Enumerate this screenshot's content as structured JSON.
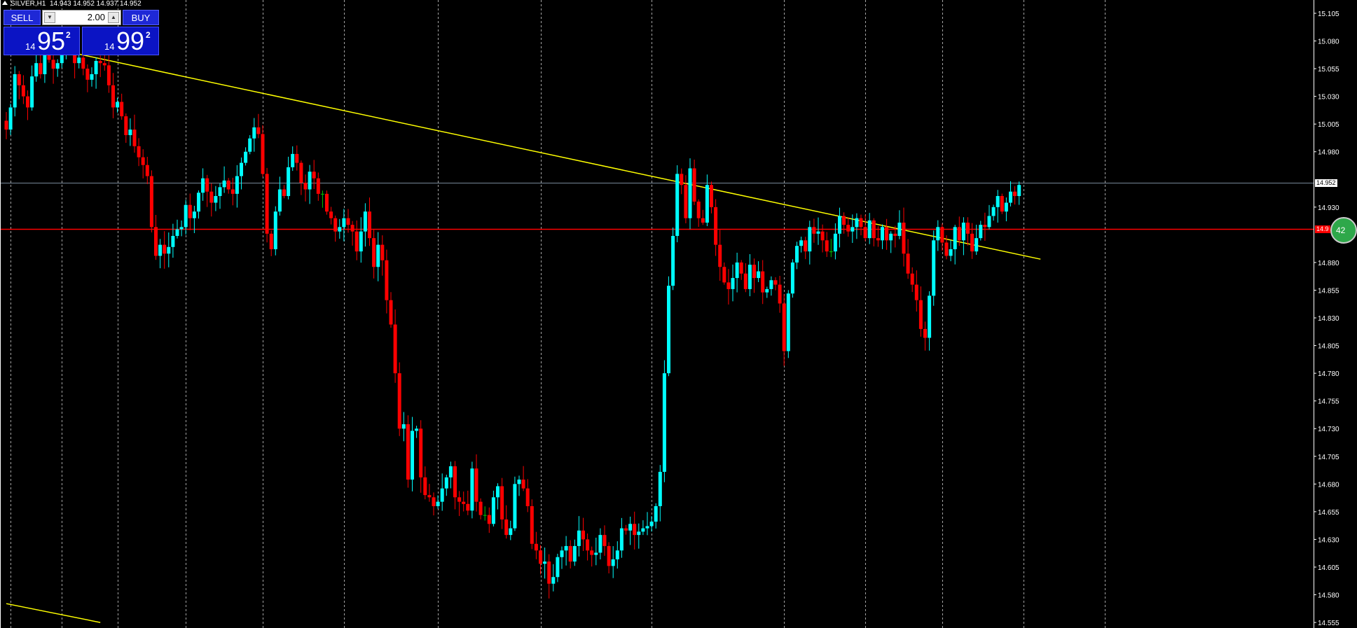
{
  "header": {
    "symbol": "SILVER,H1",
    "ohlc": "14.943 14.952 14.937 14.952"
  },
  "trade_panel": {
    "sell_label": "SELL",
    "buy_label": "BUY",
    "lot": "2.00",
    "sell_price": {
      "small": "14",
      "big": "95",
      "sup": "2"
    },
    "buy_price": {
      "small": "14",
      "big": "99",
      "sup": "2"
    }
  },
  "price_tags": {
    "bid": "14.952",
    "level": "14.9"
  },
  "alert_circle_text": "42",
  "colors": {
    "bull": "#00ffff",
    "bear": "#ff0000",
    "doji": "#00c800",
    "trendline": "#ffff00",
    "horizontal_line": "#ff0000",
    "bid_line": "#778899",
    "grid": "#c0c0c0",
    "axis": "#ffffff"
  },
  "chart_data": {
    "type": "candlestick",
    "symbol": "SILVER",
    "timeframe": "H1",
    "y_ticks": [
      15.105,
      15.08,
      15.055,
      15.03,
      15.005,
      14.98,
      14.93,
      14.88,
      14.855,
      14.83,
      14.805,
      14.78,
      14.755,
      14.73,
      14.705,
      14.68,
      14.655,
      14.63,
      14.605,
      14.58,
      14.555
    ],
    "ylim": [
      14.55,
      15.117
    ],
    "vertical_grid_index": [
      1,
      13,
      26,
      42,
      60,
      79,
      101,
      125,
      151,
      182,
      201,
      219,
      238,
      257
    ],
    "horizontal_line": 14.91,
    "bid": 14.952,
    "trendlines": [
      {
        "start": [
          5,
          15.078
        ],
        "end": [
          242,
          14.883
        ]
      },
      {
        "start": [
          0,
          14.572
        ],
        "end": [
          22,
          14.555
        ]
      }
    ],
    "closes": [
      15.0,
      15.02,
      15.05,
      15.04,
      15.03,
      15.02,
      15.048,
      15.06,
      15.05,
      15.07,
      15.063,
      15.055,
      15.06,
      15.072,
      15.08,
      15.075,
      15.06,
      15.065,
      15.055,
      15.045,
      15.05,
      15.062,
      15.06,
      15.058,
      15.04,
      15.02,
      15.025,
      15.012,
      14.995,
      15.0,
      14.985,
      14.975,
      14.968,
      14.958,
      14.912,
      14.886,
      14.896,
      14.888,
      14.894,
      14.904,
      14.91,
      14.912,
      14.932,
      14.92,
      14.926,
      14.943,
      14.956,
      14.944,
      14.934,
      14.94,
      14.948,
      14.954,
      14.946,
      14.942,
      14.958,
      14.97,
      14.98,
      14.992,
      15.002,
      14.996,
      14.96,
      14.906,
      14.892,
      14.926,
      14.946,
      14.94,
      14.966,
      14.978,
      14.97,
      14.952,
      14.946,
      14.962,
      14.956,
      14.942,
      14.942,
      14.926,
      14.92,
      14.908,
      14.912,
      14.92,
      14.914,
      14.908,
      14.89,
      14.908,
      14.926,
      14.902,
      14.876,
      14.896,
      14.882,
      14.846,
      14.824,
      14.78,
      14.73,
      14.734,
      14.684,
      14.728,
      14.73,
      14.686,
      14.67,
      14.668,
      14.66,
      14.664,
      14.676,
      14.686,
      14.696,
      14.668,
      14.664,
      14.662,
      14.656,
      14.694,
      14.664,
      14.652,
      14.652,
      14.644,
      14.668,
      14.678,
      14.648,
      14.634,
      14.64,
      14.68,
      14.684,
      14.676,
      14.66,
      14.626,
      14.62,
      14.608,
      14.61,
      14.59,
      14.596,
      14.614,
      14.62,
      14.624,
      14.61,
      14.624,
      14.638,
      14.63,
      14.62,
      14.616,
      14.618,
      14.634,
      14.624,
      14.606,
      14.612,
      14.62,
      14.64,
      14.638,
      14.644,
      14.634,
      14.637,
      14.64,
      14.642,
      14.646,
      14.66,
      14.691,
      14.78,
      14.859,
      14.904,
      14.96,
      14.95,
      14.92,
      14.965,
      14.935,
      14.92,
      14.916,
      14.95,
      14.93,
      14.896,
      14.876,
      14.862,
      14.856,
      14.866,
      14.88,
      14.87,
      14.856,
      14.878,
      14.866,
      14.872,
      14.853,
      14.856,
      14.864,
      14.86,
      14.843,
      14.8,
      14.852,
      14.88,
      14.895,
      14.9,
      14.89,
      14.912,
      14.906,
      14.908,
      14.9,
      14.89,
      14.89,
      14.906,
      14.922,
      14.914,
      14.908,
      14.912,
      14.92,
      14.912,
      14.902,
      14.918,
      14.902,
      14.9,
      14.912,
      14.9,
      14.906,
      14.904,
      14.916,
      14.888,
      14.87,
      14.86,
      14.846,
      14.82,
      14.812,
      14.85,
      14.9,
      14.912,
      14.898,
      14.886,
      14.892,
      14.912,
      14.9,
      14.916,
      14.906,
      14.89,
      14.902,
      14.914,
      14.912,
      14.922,
      14.93,
      14.94,
      14.926,
      14.934,
      14.944,
      14.94,
      14.95
    ]
  }
}
